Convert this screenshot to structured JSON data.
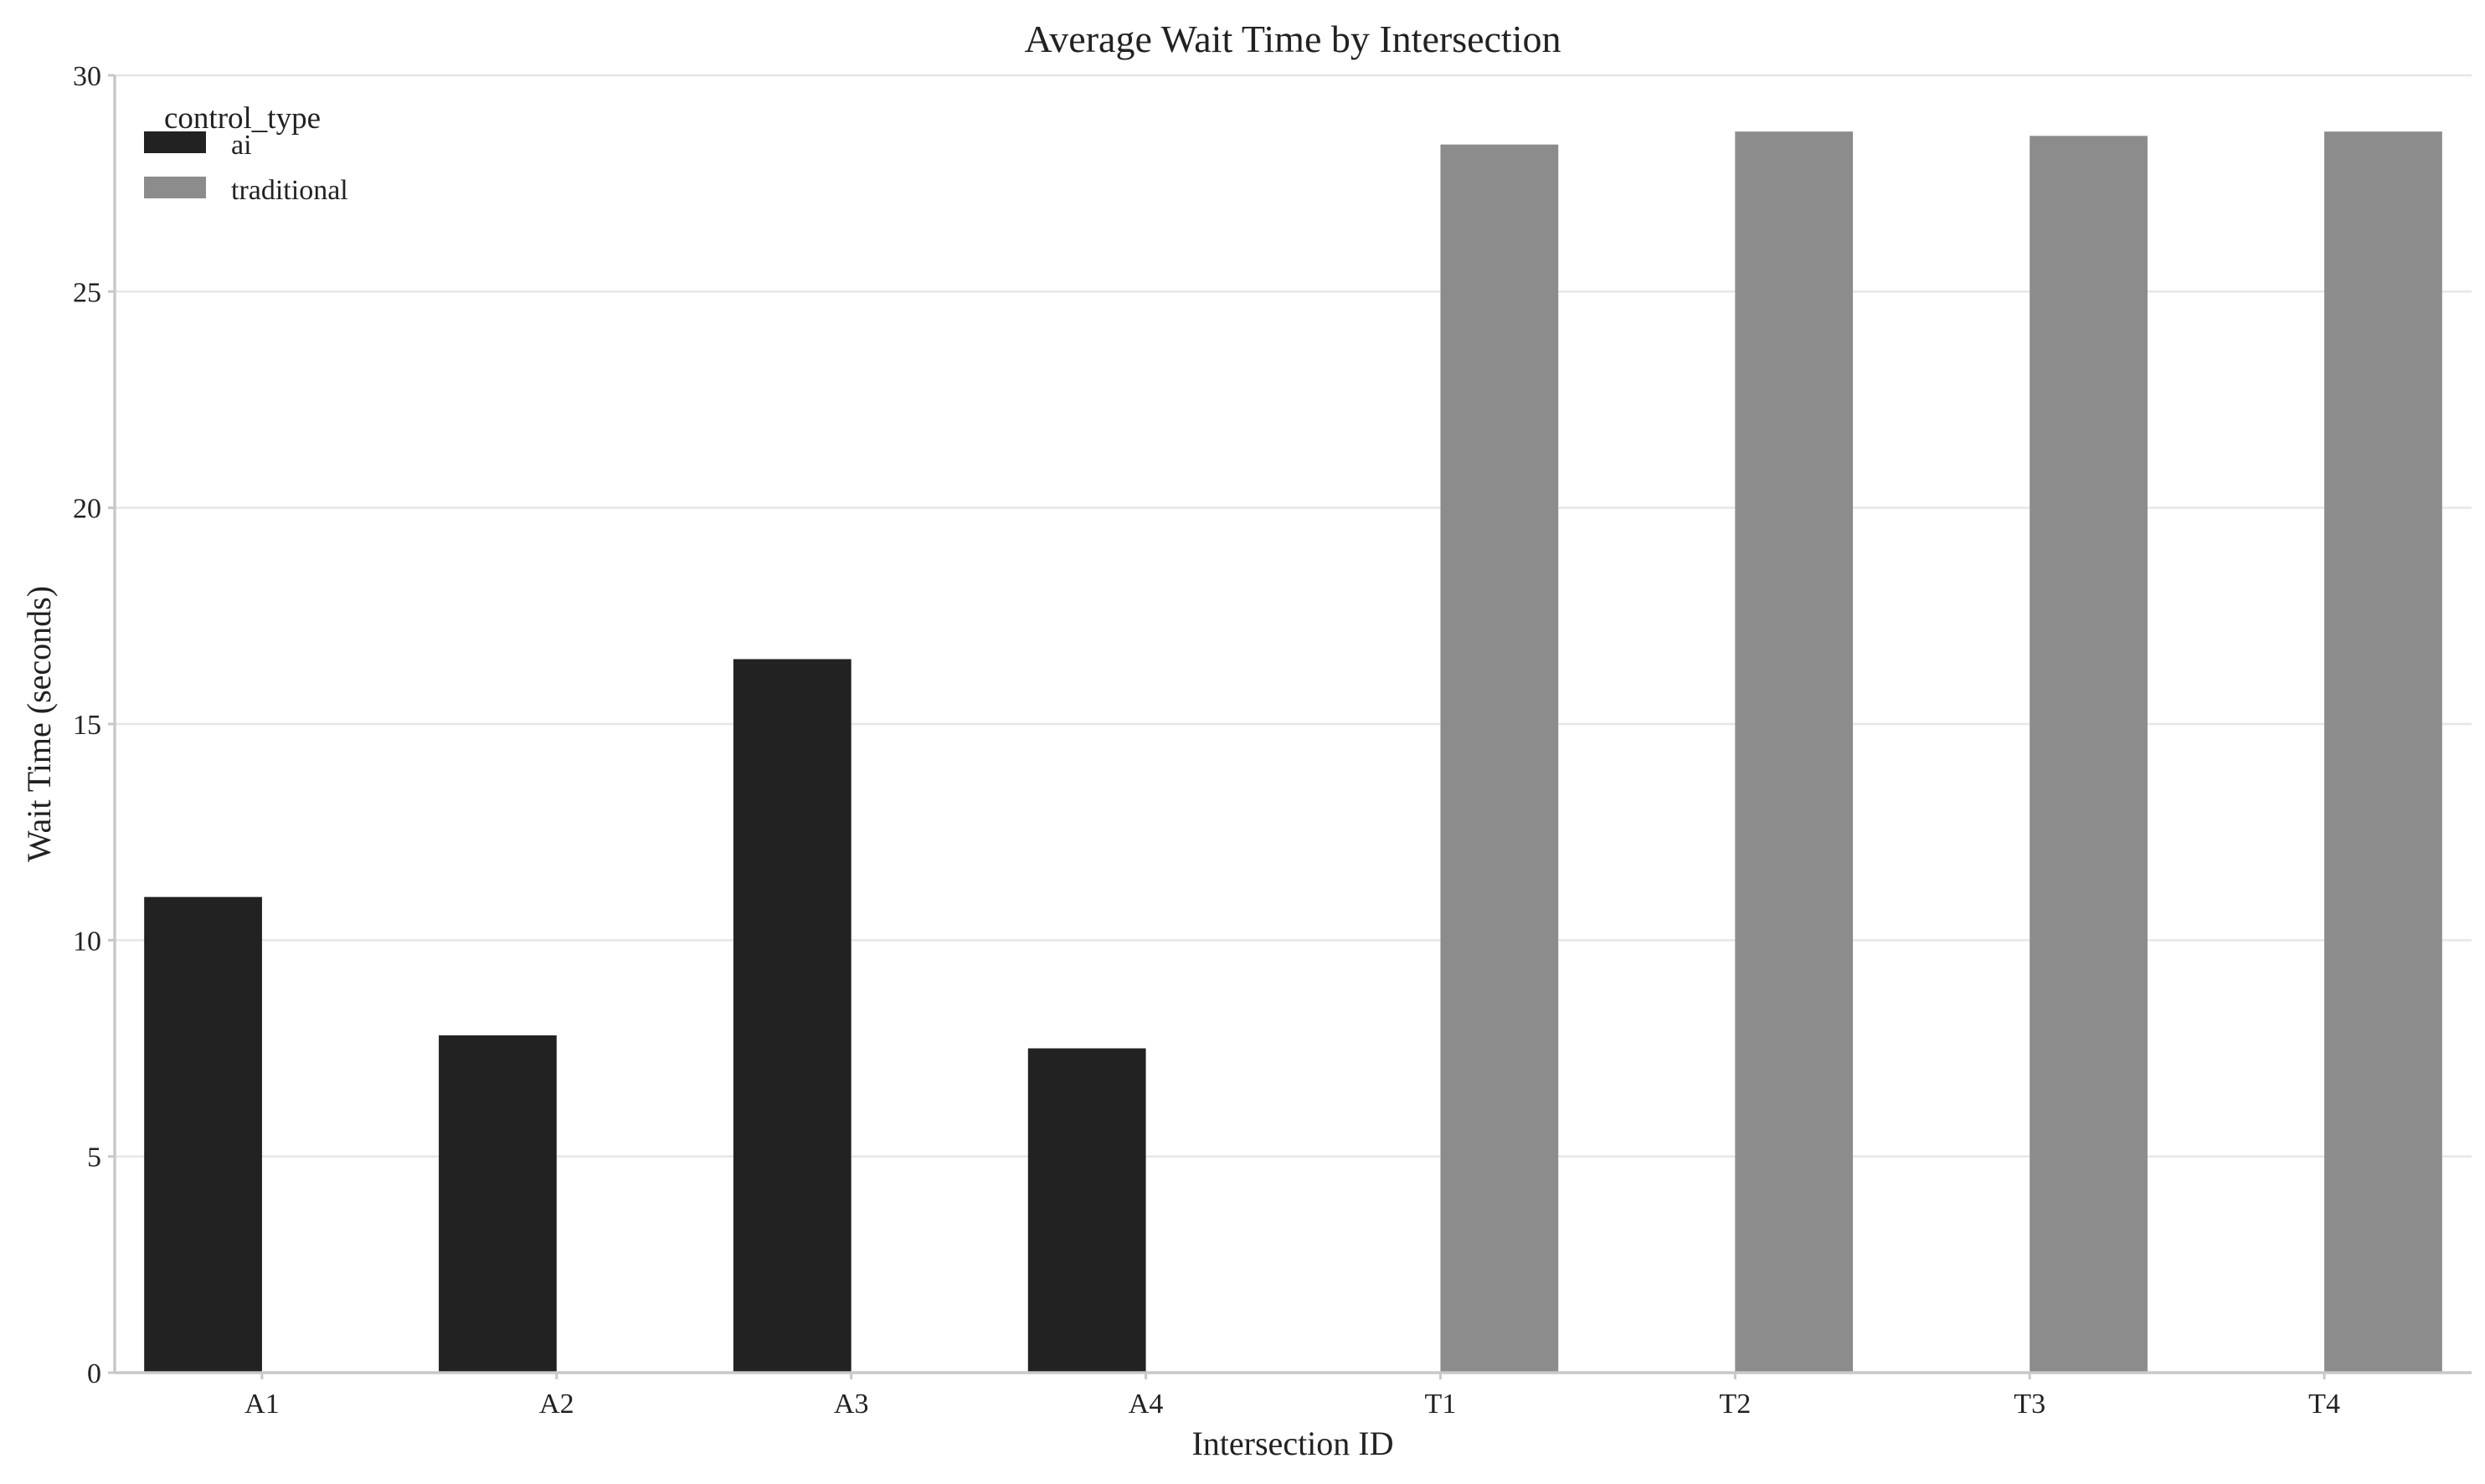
{
  "chart_data": {
    "type": "bar",
    "title": "Average Wait Time by Intersection",
    "xlabel": "Intersection ID",
    "ylabel": "Wait Time (seconds)",
    "categories": [
      "A1",
      "A2",
      "A3",
      "A4",
      "T1",
      "T2",
      "T3",
      "T4"
    ],
    "series": [
      {
        "name": "ai",
        "color": "#222222",
        "values": [
          11.0,
          7.8,
          16.5,
          7.5,
          null,
          null,
          null,
          null
        ]
      },
      {
        "name": "traditional",
        "color": "#8c8c8c",
        "values": [
          null,
          null,
          null,
          null,
          28.4,
          28.7,
          28.6,
          28.7
        ]
      }
    ],
    "ylim": [
      0,
      30
    ],
    "yticks": [
      0,
      5,
      10,
      15,
      20,
      25,
      30
    ],
    "grid": "horizontal",
    "legend": {
      "title": "control_type",
      "placement": "top-left"
    }
  }
}
